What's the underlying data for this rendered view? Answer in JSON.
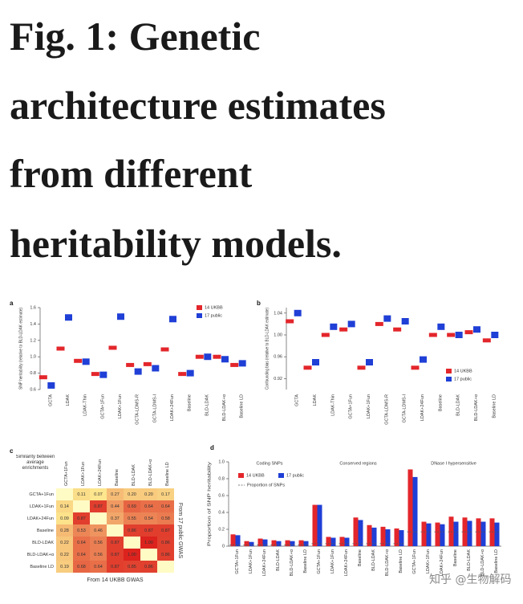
{
  "title_lines": [
    "Fig. 1: Genetic",
    "architecture estimates",
    "from different",
    "heritability models."
  ],
  "watermark": "知乎 @生物解码",
  "chart_data": [
    {
      "type": "dot",
      "panel": "a",
      "ylabel": "SNP heritability (relative to BLD-LDAK estimate)",
      "categories": [
        "GCTA",
        "LDAK",
        "LDAK-Thin",
        "GCTA+1Fun",
        "LDAK+1Fun",
        "GCTA-LDMS-R",
        "GCTA-LDMS-I",
        "LDAK+24Fun",
        "Baseline",
        "BLD-LDAK",
        "BLD-LDAK+α",
        "Baseline LD"
      ],
      "series": [
        {
          "name": "14 UKBB",
          "color": "#e3262b",
          "values": [
            0.75,
            1.1,
            0.95,
            0.79,
            1.11,
            0.9,
            0.91,
            1.09,
            0.79,
            1.0,
            1.0,
            0.9
          ]
        },
        {
          "name": "17 public",
          "color": "#1f3fd6",
          "values": [
            0.65,
            1.48,
            0.94,
            0.78,
            1.49,
            0.82,
            0.86,
            1.46,
            0.8,
            1.0,
            0.97,
            0.92
          ]
        }
      ],
      "ylim": [
        0.6,
        1.6
      ],
      "yticks": [
        0.6,
        0.8,
        {
          "value": 1,
          "label": "1.0"
        },
        1.2,
        1.4,
        1.6
      ]
    },
    {
      "type": "dot",
      "panel": "b",
      "ylabel": "Confounding bias (relative to BLD-LDAK estimate)",
      "categories": [
        "GCTA",
        "LDAK",
        "LDAK-Thin",
        "GCTA+1Fun",
        "LDAK+1Fun",
        "GCTA-LDMS-R",
        "GCTA-LDMS-I",
        "LDAK+24Fun",
        "Baseline",
        "BLD-LDAK",
        "BLD-LDAK+α",
        "Baseline LD"
      ],
      "series": [
        {
          "name": "14 UKBB",
          "color": "#e3262b",
          "values": [
            1.025,
            0.94,
            1.0,
            1.01,
            0.94,
            1.02,
            1.01,
            0.94,
            1.0,
            1.0,
            1.005,
            0.99
          ]
        },
        {
          "name": "17 public",
          "color": "#1f3fd6",
          "values": [
            1.04,
            0.95,
            1.015,
            1.02,
            0.95,
            1.03,
            1.025,
            0.955,
            1.015,
            1.0,
            1.01,
            1.0
          ]
        }
      ],
      "ylim": [
        0.9,
        1.05
      ],
      "yticks": [
        0.92,
        0.96,
        {
          "value": 1,
          "label": "1.00"
        },
        1.04
      ]
    },
    {
      "type": "heatmap",
      "panel": "c",
      "header": "Similarity between average enrichments",
      "xlabel": "From 14 UKBB GWAS",
      "y2label": "From 17 public GWAS",
      "categories": [
        "GCTA+1Fun",
        "LDAK+1Fun",
        "LDAK+24Fun",
        "Baseline",
        "BLD-LDAK",
        "BLD-LDAK+α",
        "Baseline LD"
      ],
      "values": [
        [
          null,
          0.11,
          0.07,
          0.27,
          0.2,
          0.2,
          0.17
        ],
        [
          0.14,
          null,
          0.87,
          0.44,
          0.69,
          0.64,
          0.64
        ],
        [
          0.09,
          0.87,
          null,
          0.37,
          0.55,
          0.54,
          0.58
        ],
        [
          0.28,
          0.53,
          0.46,
          null,
          0.86,
          0.87,
          0.87
        ],
        [
          0.22,
          0.64,
          0.56,
          0.87,
          null,
          1.0,
          0.86
        ],
        [
          0.22,
          0.64,
          0.56,
          0.87,
          1.0,
          null,
          0.86
        ],
        [
          0.19,
          0.68,
          0.64,
          0.87,
          0.85,
          0.86,
          null
        ]
      ],
      "value_labels": [
        [
          null,
          "0.11",
          "0.07",
          "0.27",
          "0.20",
          "0.20",
          "0.17"
        ],
        [
          "0.14",
          null,
          "0.87",
          "0.44",
          "0.69",
          "0.64",
          "0.64"
        ],
        [
          "0.09",
          "0.87",
          null,
          "0.37",
          "0.55",
          "0.54",
          "0.58"
        ],
        [
          "0.28",
          "0.53",
          "0.46",
          null,
          "0.86",
          "0.87",
          "0.87"
        ],
        [
          "0.22",
          "0.64",
          "0.56",
          "0.87",
          null,
          "1.00",
          "0.86"
        ],
        [
          "0.22",
          "0.64",
          "0.56",
          "0.87",
          "1.00",
          null,
          "0.86"
        ],
        [
          "0.19",
          "0.68",
          "0.64",
          "0.87",
          "0.85",
          "0.86",
          null
        ]
      ]
    },
    {
      "type": "grouped_bar",
      "panel": "d",
      "ylabel": "Proportion of SNP heritability",
      "groups": [
        {
          "name": "Coding SNPs",
          "categories": [
            "GCTA+1Fun",
            "LDAK+1Fun",
            "LDAK+24Fun",
            "BLD-LDAK",
            "BLD-LDAK+α",
            "Baseline LD"
          ]
        },
        {
          "name": "Conserved regions",
          "categories": [
            "GCTA+1Fun",
            "LDAK+1Fun",
            "LDAK+24Fun",
            "Baseline",
            "BLD-LDAK",
            "BLD-LDAK+α",
            "Baseline LD"
          ]
        },
        {
          "name": "DNase I hypersensitive",
          "categories": [
            "GCTA+1Fun",
            "LDAK+1Fun",
            "LDAK+24Fun",
            "Baseline",
            "BLD-LDAK",
            "BLD-LDAK+α",
            "Baseline LD"
          ]
        }
      ],
      "series": [
        {
          "name": "14 UKBB",
          "color": "#e3262b",
          "values": [
            0.14,
            0.06,
            0.09,
            0.07,
            0.07,
            0.07,
            0.49,
            0.11,
            0.11,
            0.34,
            0.25,
            0.23,
            0.21,
            0.91,
            0.29,
            0.28,
            0.35,
            0.34,
            0.33,
            0.33
          ]
        },
        {
          "name": "17 public",
          "color": "#1f3fd6",
          "values": [
            0.13,
            0.05,
            0.08,
            0.06,
            0.06,
            0.06,
            0.49,
            0.1,
            0.1,
            0.31,
            0.22,
            0.2,
            0.19,
            0.82,
            0.27,
            0.26,
            0.29,
            0.3,
            0.29,
            0.28
          ]
        },
        {
          "name": "Proportion of SNPs",
          "color": "#555555",
          "dashed": true,
          "values": [
            0.015,
            0.015,
            0.015,
            0.015,
            0.015,
            0.015,
            0.03,
            0.03,
            0.03,
            0.03,
            0.03,
            0.03,
            0.03,
            0.17,
            0.17,
            0.17,
            0.17,
            0.17,
            0.17,
            0.17
          ]
        }
      ],
      "ylim": [
        0,
        1
      ],
      "yticks": [
        0,
        0.2,
        0.4,
        0.6,
        0.8,
        {
          "value": 1,
          "label": "1.0"
        }
      ]
    }
  ]
}
